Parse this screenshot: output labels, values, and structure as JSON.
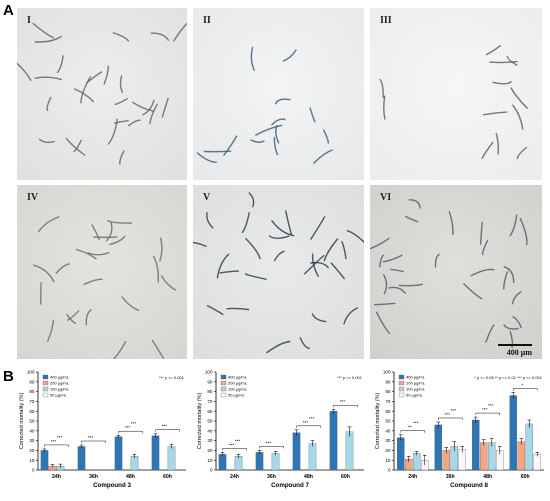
{
  "figure": {
    "label_a": "A",
    "label_b": "B"
  },
  "micrographs": [
    {
      "roman": "I"
    },
    {
      "roman": "II"
    },
    {
      "roman": "III"
    },
    {
      "roman": "IV"
    },
    {
      "roman": "V"
    },
    {
      "roman": "VI",
      "scale_label": "400 μm"
    }
  ],
  "chart_data": [
    {
      "type": "bar",
      "title": "",
      "xlabel": "Compound 3",
      "ylabel": "Corrected mortality (%)",
      "ylim": [
        0,
        100
      ],
      "yticks": [
        0,
        10,
        20,
        30,
        40,
        50,
        60,
        70,
        80,
        90,
        100
      ],
      "categories": [
        "24h",
        "36h",
        "48h",
        "60h"
      ],
      "series": [
        {
          "name": "400 μg/mL",
          "color": "#2e75b6",
          "values": [
            20,
            24,
            34,
            35
          ],
          "err": [
            1.5,
            1.5,
            1.5,
            2
          ]
        },
        {
          "name": "200 μg/mL",
          "color": "#f4a582",
          "values": [
            4,
            0,
            0,
            0
          ],
          "err": [
            1.5,
            0,
            0,
            0
          ]
        },
        {
          "name": "100 μg/mL",
          "color": "#a6d8ea",
          "values": [
            4,
            0,
            14,
            24
          ],
          "err": [
            2,
            0,
            2,
            2
          ]
        },
        {
          "name": "50  μg/mL",
          "color": "#f7f7f7",
          "values": [
            0,
            0,
            0,
            0
          ],
          "err": [
            0,
            0,
            0,
            0
          ]
        }
      ],
      "legend_placement": "top-left",
      "significance_note": "*** p <= 0.001",
      "sig_labels": [
        "***",
        "***",
        "***",
        "***",
        "***",
        "***"
      ]
    },
    {
      "type": "bar",
      "title": "",
      "xlabel": "Compound 7",
      "ylabel": "Corrected mortality (%)",
      "ylim": [
        0,
        100
      ],
      "yticks": [
        0,
        10,
        20,
        30,
        40,
        50,
        60,
        70,
        80,
        90,
        100
      ],
      "categories": [
        "24h",
        "36h",
        "48h",
        "60h"
      ],
      "series": [
        {
          "name": "400 μg/mL",
          "color": "#2e75b6",
          "values": [
            16,
            18,
            38,
            60
          ],
          "err": [
            2,
            2,
            3,
            2
          ]
        },
        {
          "name": "200 μg/mL",
          "color": "#f4a582",
          "values": [
            0,
            0,
            0,
            0
          ],
          "err": [
            0,
            0,
            0,
            0
          ]
        },
        {
          "name": "100 μg/mL",
          "color": "#a6d8ea",
          "values": [
            14,
            17,
            27,
            39
          ],
          "err": [
            2,
            2,
            3,
            5
          ]
        },
        {
          "name": "50  μg/mL",
          "color": "#f7f7f7",
          "values": [
            0,
            0,
            0,
            0
          ],
          "err": [
            0,
            0,
            0,
            0
          ]
        }
      ],
      "legend_placement": "top-left",
      "significance_note": "*** p <= 0.001",
      "sig_labels": [
        "***",
        "***",
        "***",
        "***",
        "***",
        "***"
      ]
    },
    {
      "type": "bar",
      "title": "",
      "xlabel": "Compound 8",
      "ylabel": "Corrected mortality (%)",
      "ylim": [
        0,
        100
      ],
      "yticks": [
        0,
        10,
        20,
        30,
        40,
        50,
        60,
        70,
        80,
        90,
        100
      ],
      "categories": [
        "24h",
        "36h",
        "48h",
        "60h"
      ],
      "series": [
        {
          "name": "400 μg/mL",
          "color": "#2e75b6",
          "values": [
            33,
            46,
            51,
            76
          ],
          "err": [
            3,
            3,
            3,
            3
          ]
        },
        {
          "name": "200 μg/mL",
          "color": "#f4a582",
          "values": [
            11,
            20,
            28,
            29
          ],
          "err": [
            3,
            3,
            3,
            3
          ]
        },
        {
          "name": "100 μg/mL",
          "color": "#a6d8ea",
          "values": [
            17,
            24,
            28,
            47
          ],
          "err": [
            2,
            5,
            4,
            4
          ]
        },
        {
          "name": "50  μg/mL",
          "color": "#f7f7f7",
          "values": [
            10,
            21,
            20,
            16
          ],
          "err": [
            5,
            3,
            4,
            2
          ]
        }
      ],
      "legend_placement": "top-left",
      "significance_note": "* p <= 0.05   ** p <= 0.01   *** p <= 0.001",
      "sig_labels": [
        "**",
        "***",
        "***",
        "***",
        "***",
        "***",
        "*"
      ]
    }
  ]
}
